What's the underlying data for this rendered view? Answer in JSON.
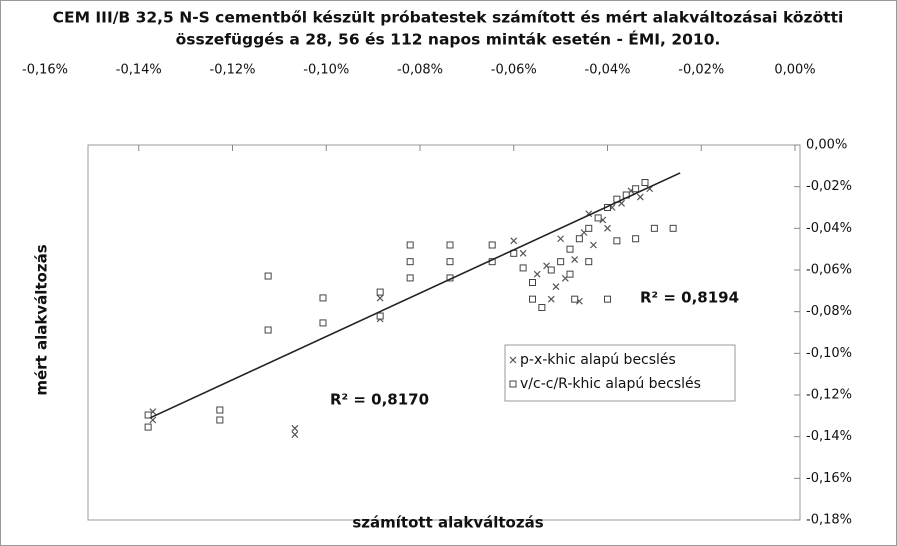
{
  "chart_data": {
    "type": "scatter",
    "title": "CEM III/B 32,5 N-S cementből készült próbatestek számított és mért alakváltozásai közötti",
    "subtitle": "összefüggés a 28, 56 és 112 napos minták esetén - ÉMI, 2010.",
    "x_label": "számított alakváltozás",
    "y_label": "mért alakváltozás",
    "xlim": [
      -0.16,
      0
    ],
    "xticks": [
      {
        "value": -0.16,
        "label": "-0,16%"
      },
      {
        "value": -0.14,
        "label": "-0,14%"
      },
      {
        "value": -0.12,
        "label": "-0,12%"
      },
      {
        "value": -0.1,
        "label": "-0,10%"
      },
      {
        "value": -0.08,
        "label": "-0,08%"
      },
      {
        "value": -0.06,
        "label": "-0,06%"
      },
      {
        "value": -0.04,
        "label": "-0,04%"
      },
      {
        "value": -0.02,
        "label": "-0,02%"
      },
      {
        "value": 0,
        "label": "0,00%"
      }
    ],
    "ylim": [
      -0.18,
      0
    ],
    "yticks": [
      {
        "value": 0,
        "label": "0,00%"
      },
      {
        "value": -0.02,
        "label": "-0,02%"
      },
      {
        "value": -0.04,
        "label": "-0,04%"
      },
      {
        "value": -0.06,
        "label": "-0,06%"
      },
      {
        "value": -0.08,
        "label": "-0,08%"
      },
      {
        "value": -0.1,
        "label": "-0,10%"
      },
      {
        "value": -0.12,
        "label": "-0,12%"
      },
      {
        "value": -0.14,
        "label": "-0,14%"
      },
      {
        "value": -0.16,
        "label": "-0,16%"
      },
      {
        "value": -0.18,
        "label": "-0,18%"
      }
    ],
    "x_axis_position": "top",
    "y_axis_position": "right",
    "series": [
      {
        "name": "p-x-khic alapú becslés",
        "marker": "x",
        "color": "#555555",
        "x": [
          -0.137,
          -0.137,
          -0.1067,
          -0.1067,
          -0.1007,
          -0.1007,
          -0.0885,
          -0.0885,
          -0.06,
          -0.058,
          -0.055,
          -0.053,
          -0.051,
          -0.049,
          -0.047,
          -0.045,
          -0.043,
          -0.041,
          -0.039,
          -0.037,
          -0.035,
          -0.033,
          -0.031,
          -0.052,
          -0.046,
          -0.04,
          -0.044,
          -0.05
        ],
        "values": [
          -0.132,
          -0.128,
          -0.136,
          -0.139,
          -0.0734,
          -0.0854,
          -0.0735,
          -0.0835,
          -0.046,
          -0.052,
          -0.062,
          -0.058,
          -0.068,
          -0.064,
          -0.055,
          -0.042,
          -0.048,
          -0.036,
          -0.03,
          -0.028,
          -0.022,
          -0.025,
          -0.021,
          -0.074,
          -0.075,
          -0.04,
          -0.033,
          -0.045
        ]
      },
      {
        "name": "v/c-c/R-khic alapú becslés",
        "marker": "square",
        "color": "#444444",
        "x": [
          -0.138,
          -0.138,
          -0.1227,
          -0.1227,
          -0.1124,
          -0.1124,
          -0.1007,
          -0.1007,
          -0.0885,
          -0.0885,
          -0.0821,
          -0.0821,
          -0.0821,
          -0.0736,
          -0.0736,
          -0.0736,
          -0.0646,
          -0.0646,
          -0.06,
          -0.058,
          -0.056,
          -0.056,
          -0.054,
          -0.052,
          -0.05,
          -0.048,
          -0.046,
          -0.044,
          -0.042,
          -0.04,
          -0.038,
          -0.036,
          -0.034,
          -0.032,
          -0.03,
          -0.034,
          -0.038,
          -0.044,
          -0.04,
          -0.047,
          -0.048,
          -0.026
        ],
        "values": [
          -0.1296,
          -0.1354,
          -0.1272,
          -0.132,
          -0.0629,
          -0.0888,
          -0.0734,
          -0.0854,
          -0.0706,
          -0.0821,
          -0.048,
          -0.056,
          -0.0638,
          -0.048,
          -0.056,
          -0.0638,
          -0.048,
          -0.056,
          -0.052,
          -0.059,
          -0.066,
          -0.074,
          -0.078,
          -0.06,
          -0.056,
          -0.05,
          -0.045,
          -0.04,
          -0.035,
          -0.03,
          -0.026,
          -0.024,
          -0.021,
          -0.018,
          -0.04,
          -0.045,
          -0.046,
          -0.056,
          -0.074,
          -0.074,
          -0.062,
          -0.04
        ]
      }
    ],
    "trendline": {
      "x": [
        -0.1376,
        -0.0245
      ],
      "values": [
        -0.131,
        -0.0134
      ],
      "color": "#222222"
    },
    "annotations": [
      "R² = 0,8194",
      "R² = 0,8170"
    ],
    "legend": "lower-right"
  }
}
